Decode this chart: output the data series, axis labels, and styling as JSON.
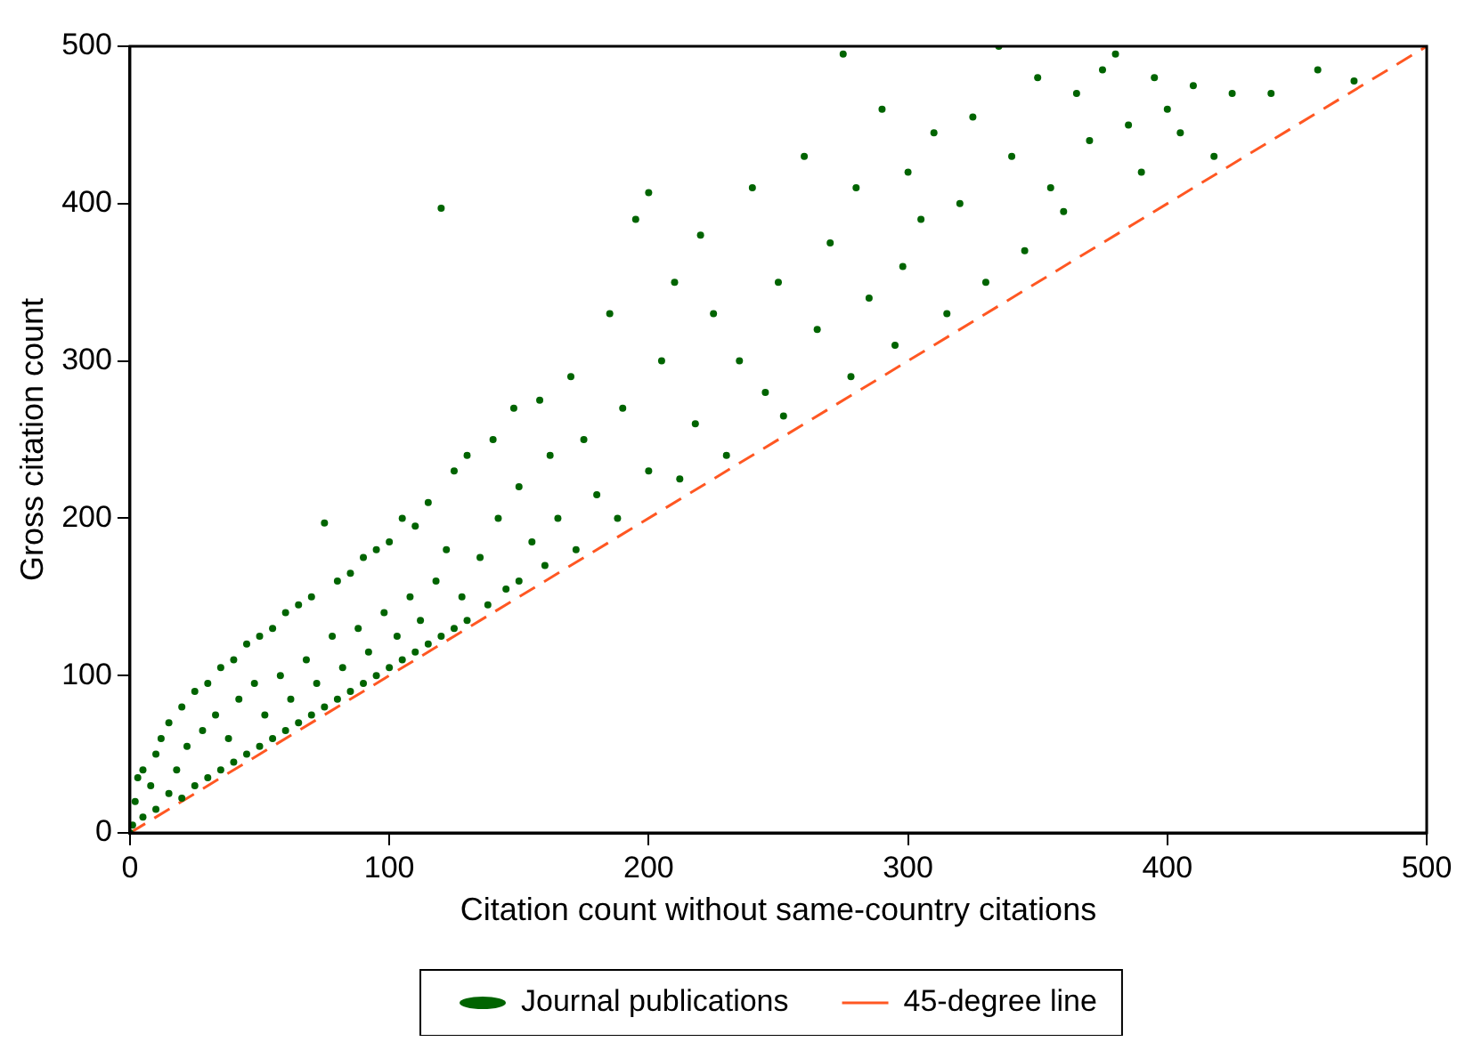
{
  "chart_data": {
    "type": "scatter",
    "xlabel": "Citation count without same-country citations",
    "ylabel": "Gross citation count",
    "xlim": [
      0,
      500
    ],
    "ylim": [
      0,
      500
    ],
    "xticks": [
      0,
      100,
      200,
      300,
      400,
      500
    ],
    "yticks": [
      0,
      100,
      200,
      300,
      400,
      500
    ],
    "grid": false,
    "legend": "bottom",
    "marker": "circle",
    "series": [
      {
        "name": "Journal publications",
        "color": "#006400",
        "x": [
          0,
          1,
          2,
          3,
          5,
          5,
          8,
          10,
          10,
          12,
          15,
          15,
          18,
          20,
          20,
          22,
          25,
          25,
          28,
          30,
          30,
          33,
          35,
          35,
          38,
          40,
          40,
          42,
          45,
          45,
          48,
          50,
          50,
          52,
          55,
          55,
          58,
          60,
          60,
          62,
          65,
          65,
          68,
          70,
          70,
          72,
          75,
          75,
          78,
          80,
          80,
          82,
          85,
          85,
          88,
          90,
          90,
          92,
          95,
          95,
          98,
          100,
          100,
          103,
          105,
          105,
          108,
          110,
          110,
          112,
          115,
          115,
          118,
          120,
          120,
          122,
          125,
          125,
          128,
          130,
          130,
          135,
          138,
          140,
          142,
          145,
          148,
          150,
          150,
          155,
          158,
          160,
          162,
          165,
          170,
          172,
          175,
          180,
          185,
          188,
          190,
          195,
          200,
          200,
          205,
          210,
          212,
          218,
          220,
          225,
          230,
          235,
          240,
          245,
          250,
          252,
          260,
          265,
          270,
          275,
          278,
          280,
          285,
          290,
          295,
          298,
          300,
          305,
          310,
          315,
          320,
          325,
          330,
          335,
          340,
          345,
          350,
          355,
          360,
          365,
          370,
          375,
          380,
          385,
          390,
          395,
          400,
          405,
          410,
          418,
          425,
          440,
          458,
          472
        ],
        "values": [
          0,
          5,
          20,
          35,
          10,
          40,
          30,
          15,
          50,
          60,
          25,
          70,
          40,
          22,
          80,
          55,
          30,
          90,
          65,
          35,
          95,
          75,
          40,
          105,
          60,
          45,
          110,
          85,
          50,
          120,
          95,
          55,
          125,
          75,
          60,
          130,
          100,
          65,
          140,
          85,
          70,
          145,
          110,
          75,
          150,
          95,
          197,
          80,
          125,
          85,
          160,
          105,
          90,
          165,
          130,
          95,
          175,
          115,
          100,
          180,
          140,
          105,
          185,
          125,
          110,
          200,
          150,
          115,
          195,
          135,
          120,
          210,
          160,
          397,
          125,
          180,
          130,
          230,
          150,
          135,
          240,
          175,
          145,
          250,
          200,
          155,
          270,
          160,
          220,
          185,
          275,
          170,
          240,
          200,
          290,
          180,
          250,
          215,
          330,
          200,
          270,
          390,
          407,
          230,
          300,
          350,
          225,
          260,
          380,
          330,
          240,
          300,
          410,
          280,
          350,
          265,
          430,
          320,
          375,
          495,
          290,
          410,
          340,
          460,
          310,
          360,
          420,
          390,
          445,
          330,
          400,
          455,
          350,
          500,
          430,
          370,
          480,
          410,
          395,
          470,
          440,
          485,
          495,
          450,
          420,
          480,
          460,
          445,
          475,
          430,
          470,
          470,
          485,
          478
        ]
      },
      {
        "name": "45-degree line",
        "color": "#ff5722",
        "type": "line",
        "line_style": "dashed",
        "marker": "none",
        "x": [
          0,
          500
        ],
        "values": [
          0,
          500
        ]
      }
    ]
  }
}
